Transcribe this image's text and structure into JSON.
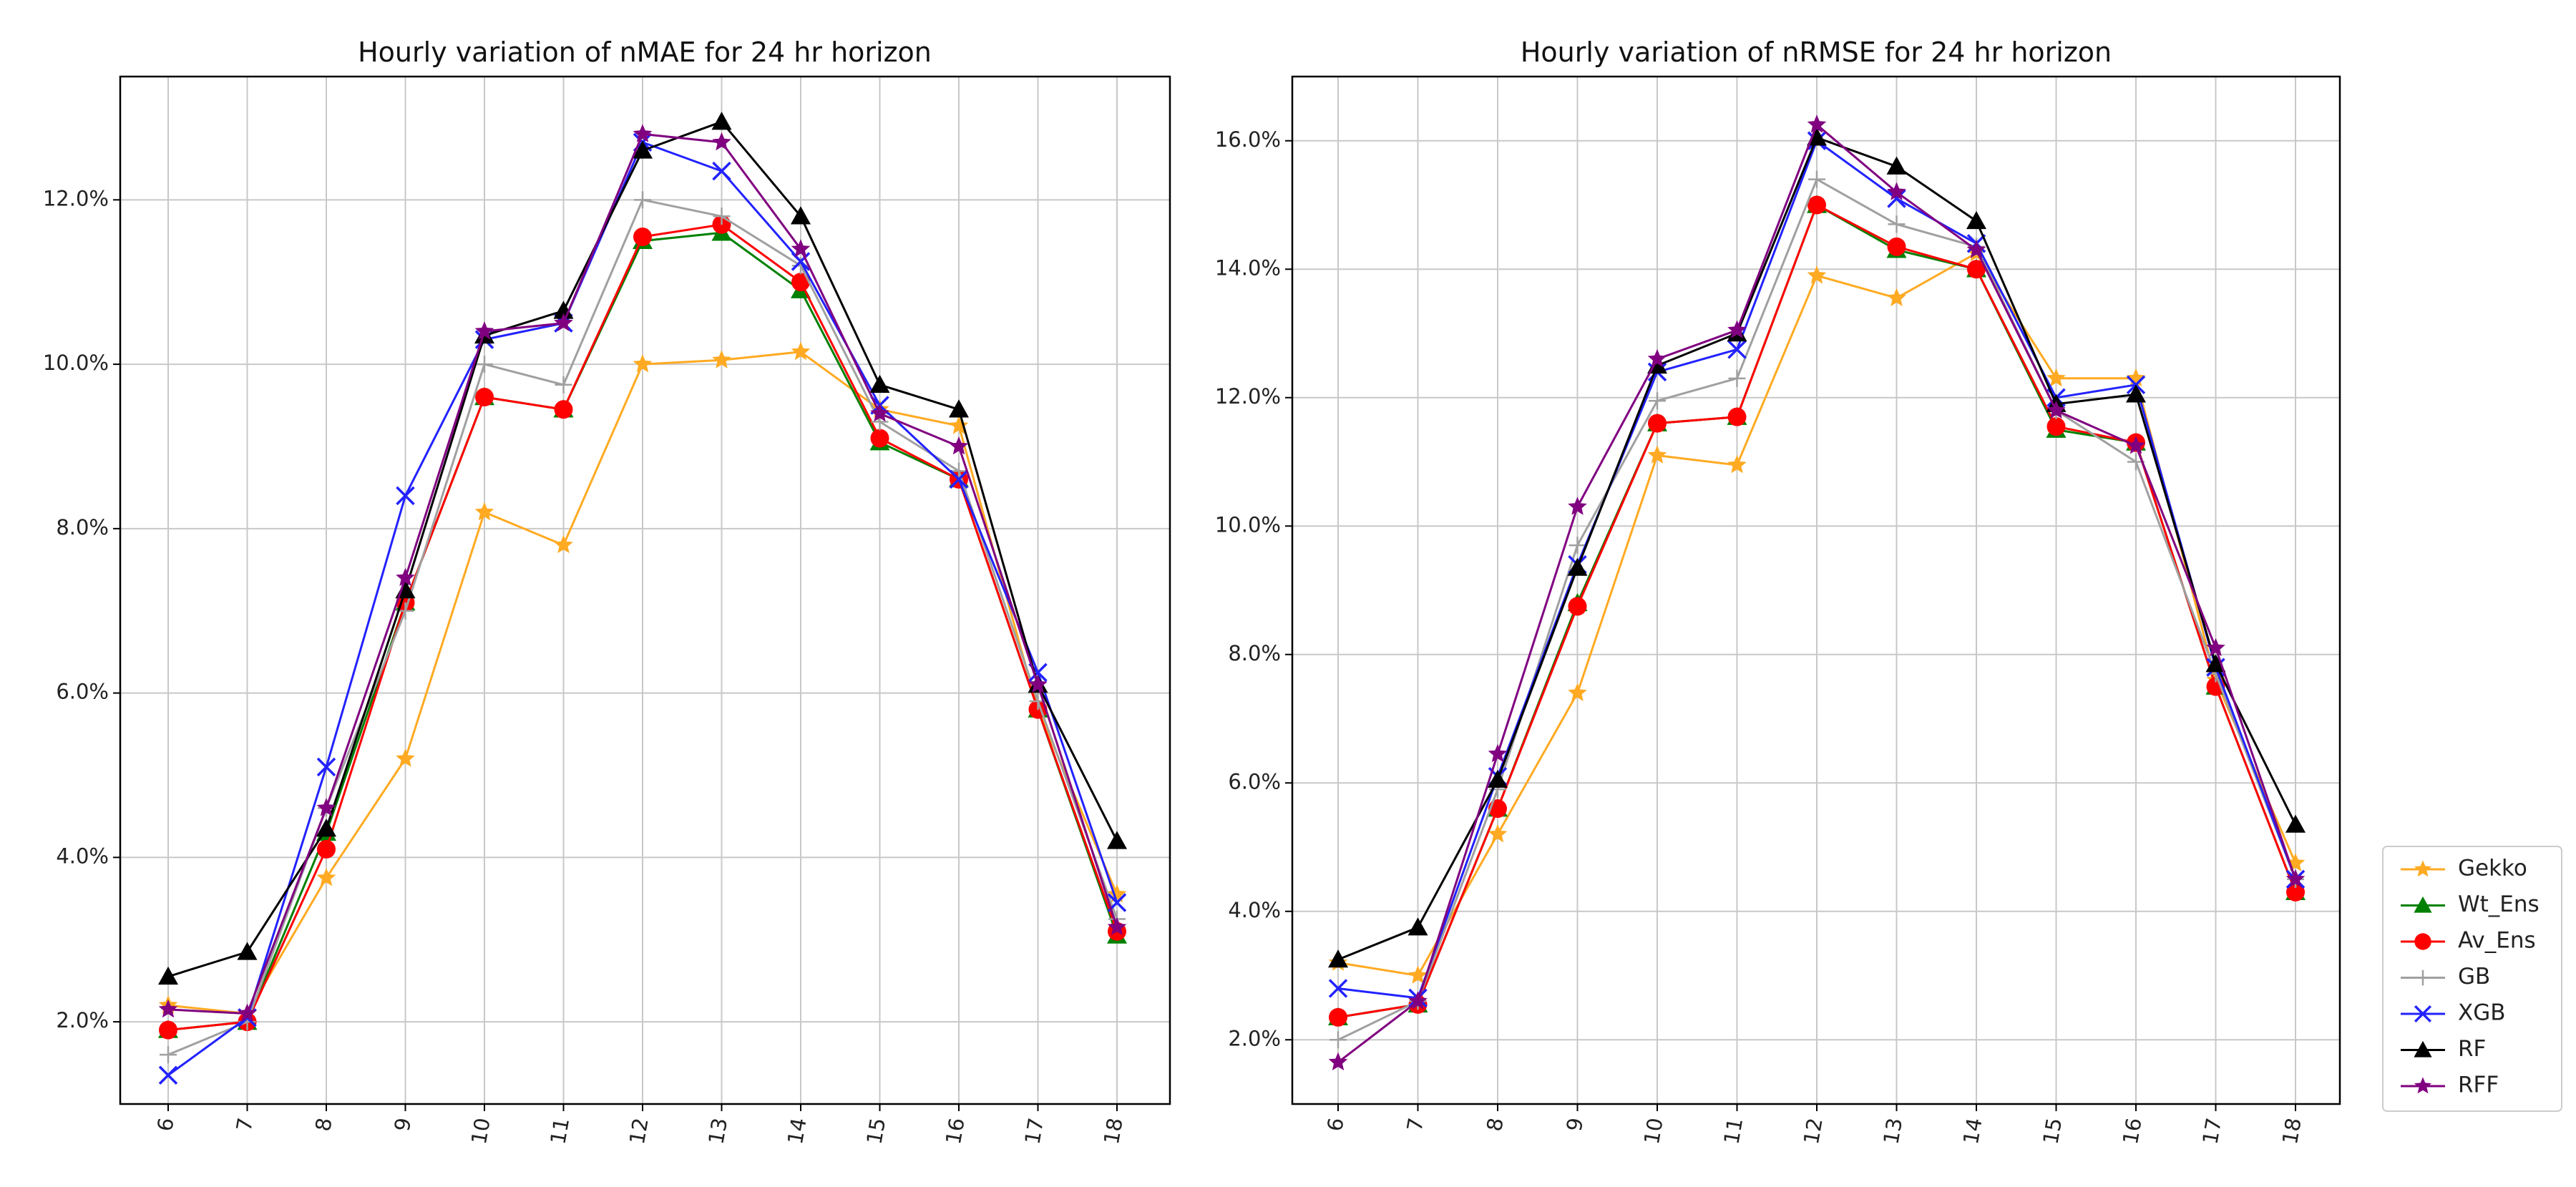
{
  "chart_data": [
    {
      "type": "line",
      "title": "Hourly variation of nMAE for 24 hr horizon",
      "xlabel": "",
      "ylabel": "",
      "x": [
        6,
        7,
        8,
        9,
        10,
        11,
        12,
        13,
        14,
        15,
        16,
        17,
        18
      ],
      "x_tick_labels": [
        "6",
        "7",
        "8",
        "9",
        "10",
        "11",
        "12",
        "13",
        "14",
        "15",
        "16",
        "17",
        "18"
      ],
      "ylim": [
        1.0,
        13.5
      ],
      "y_ticks": [
        2.0,
        4.0,
        6.0,
        8.0,
        10.0,
        12.0
      ],
      "y_tick_labels": [
        "2.0%",
        "4.0%",
        "6.0%",
        "8.0%",
        "10.0%",
        "12.0%"
      ],
      "grid": true,
      "series": [
        {
          "name": "Gekko",
          "values": [
            2.2,
            2.1,
            3.75,
            5.2,
            8.2,
            7.8,
            10.0,
            10.05,
            10.15,
            9.45,
            9.25,
            5.8,
            3.55
          ]
        },
        {
          "name": "Wt_Ens",
          "values": [
            1.9,
            2.0,
            4.3,
            7.1,
            9.6,
            9.45,
            11.5,
            11.6,
            10.9,
            9.05,
            8.6,
            5.8,
            3.05
          ]
        },
        {
          "name": "Av_Ens",
          "values": [
            1.9,
            2.0,
            4.1,
            7.1,
            9.6,
            9.45,
            11.55,
            11.7,
            11.0,
            9.1,
            8.6,
            5.8,
            3.1
          ]
        },
        {
          "name": "GB",
          "values": [
            1.6,
            2.0,
            4.6,
            7.0,
            10.0,
            9.75,
            12.0,
            11.8,
            11.2,
            9.3,
            8.7,
            5.9,
            3.25
          ]
        },
        {
          "name": "XGB",
          "values": [
            1.35,
            2.05,
            5.1,
            8.4,
            10.3,
            10.5,
            12.7,
            12.35,
            11.25,
            9.5,
            8.6,
            6.25,
            3.45
          ]
        },
        {
          "name": "RF",
          "values": [
            2.55,
            2.85,
            4.35,
            7.25,
            10.35,
            10.65,
            12.6,
            12.95,
            11.8,
            9.75,
            9.45,
            6.1,
            4.2
          ]
        },
        {
          "name": "RFF",
          "values": [
            2.15,
            2.1,
            4.6,
            7.4,
            10.4,
            10.5,
            12.8,
            12.7,
            11.4,
            9.4,
            9.0,
            6.1,
            3.15
          ]
        }
      ]
    },
    {
      "type": "line",
      "title": "Hourly variation of nRMSE for 24 hr horizon",
      "xlabel": "",
      "ylabel": "",
      "x": [
        6,
        7,
        8,
        9,
        10,
        11,
        12,
        13,
        14,
        15,
        16,
        17,
        18
      ],
      "x_tick_labels": [
        "6",
        "7",
        "8",
        "9",
        "10",
        "11",
        "12",
        "13",
        "14",
        "15",
        "16",
        "17",
        "18"
      ],
      "ylim": [
        1.0,
        17.0
      ],
      "y_ticks": [
        2.0,
        4.0,
        6.0,
        8.0,
        10.0,
        12.0,
        14.0,
        16.0
      ],
      "y_tick_labels": [
        "2.0%",
        "4.0%",
        "6.0%",
        "8.0%",
        "10.0%",
        "12.0%",
        "14.0%",
        "16.0%"
      ],
      "grid": true,
      "series": [
        {
          "name": "Gekko",
          "values": [
            3.2,
            3.0,
            5.2,
            7.4,
            11.1,
            10.95,
            13.9,
            13.55,
            14.25,
            12.3,
            12.3,
            7.6,
            4.75
          ]
        },
        {
          "name": "Wt_Ens",
          "values": [
            2.35,
            2.55,
            5.6,
            8.8,
            11.6,
            11.7,
            15.0,
            14.3,
            14.0,
            11.5,
            11.3,
            7.5,
            4.3
          ]
        },
        {
          "name": "Av_Ens",
          "values": [
            2.35,
            2.55,
            5.6,
            8.75,
            11.6,
            11.7,
            15.0,
            14.35,
            14.0,
            11.55,
            11.3,
            7.5,
            4.3
          ]
        },
        {
          "name": "GB",
          "values": [
            2.0,
            2.6,
            5.9,
            9.7,
            11.95,
            12.3,
            15.4,
            14.7,
            14.35,
            11.8,
            11.0,
            7.7,
            4.5
          ]
        },
        {
          "name": "XGB",
          "values": [
            2.8,
            2.65,
            6.1,
            9.4,
            12.4,
            12.75,
            16.0,
            15.1,
            14.4,
            12.0,
            12.2,
            7.8,
            4.5
          ]
        },
        {
          "name": "RF",
          "values": [
            3.25,
            3.75,
            6.05,
            9.35,
            12.5,
            13.0,
            16.05,
            15.6,
            14.75,
            11.9,
            12.05,
            7.85,
            5.35
          ]
        },
        {
          "name": "RFF",
          "values": [
            1.65,
            2.6,
            6.45,
            10.3,
            12.6,
            13.05,
            16.25,
            15.2,
            14.3,
            11.8,
            11.25,
            8.1,
            4.5
          ]
        }
      ]
    }
  ],
  "legend": {
    "placement": "bottom-right, outside plot area",
    "items": [
      {
        "name": "Gekko",
        "color": "#ffaa22",
        "marker": "star"
      },
      {
        "name": "Wt_Ens",
        "color": "#008000",
        "marker": "triangle"
      },
      {
        "name": "Av_Ens",
        "color": "#ff0000",
        "marker": "circle"
      },
      {
        "name": "GB",
        "color": "#a0a0a0",
        "marker": "plus"
      },
      {
        "name": "XGB",
        "color": "#2222ff",
        "marker": "x"
      },
      {
        "name": "RF",
        "color": "#000000",
        "marker": "triangle"
      },
      {
        "name": "RFF",
        "color": "#800080",
        "marker": "star"
      }
    ]
  }
}
